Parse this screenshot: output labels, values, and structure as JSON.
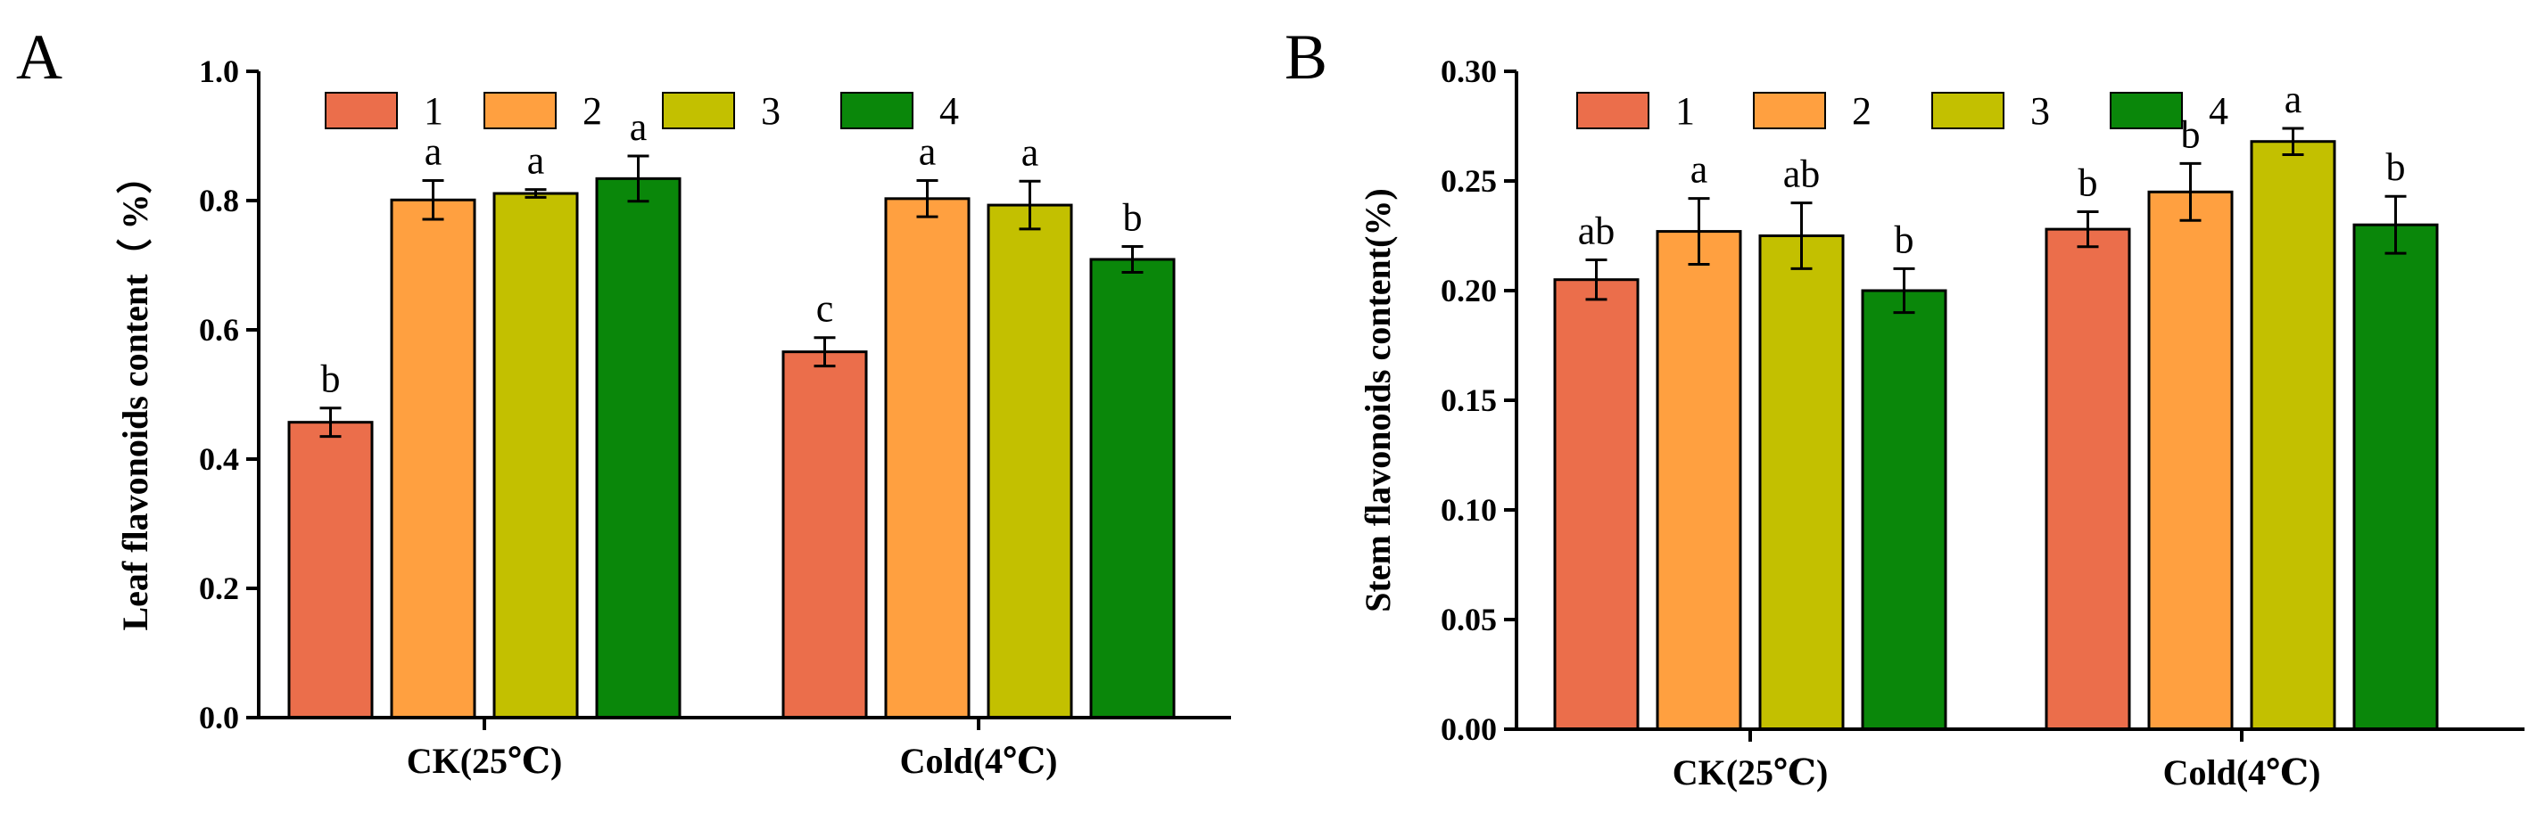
{
  "colors": {
    "series": [
      "#EB6E4B",
      "#FFA040",
      "#C3C000",
      "#0A870A"
    ],
    "axis": "#000000",
    "background": "#FFFFFF"
  },
  "chart_data": [
    {
      "type": "bar",
      "panel": "A",
      "ylabel": "Leaf flavonoids content（ %）",
      "categories": [
        "CK(25℃)",
        "Cold(4℃)"
      ],
      "ylim": [
        0,
        1.0
      ],
      "yticks": [
        "0.0",
        "0.2",
        "0.4",
        "0.6",
        "0.8",
        "1.0"
      ],
      "legend_position": "top",
      "series": [
        {
          "name": "1",
          "values": [
            0.457,
            0.566
          ],
          "errors": [
            0.022,
            0.022
          ],
          "letters": [
            "b",
            "c"
          ]
        },
        {
          "name": "2",
          "values": [
            0.801,
            0.803
          ],
          "errors": [
            0.03,
            0.028
          ],
          "letters": [
            "a",
            "a"
          ]
        },
        {
          "name": "3",
          "values": [
            0.811,
            0.793
          ],
          "errors": [
            0.006,
            0.037
          ],
          "letters": [
            "a",
            "a"
          ]
        },
        {
          "name": "4",
          "values": [
            0.834,
            0.709
          ],
          "errors": [
            0.035,
            0.02
          ],
          "letters": [
            "a",
            "b"
          ]
        }
      ]
    },
    {
      "type": "bar",
      "panel": "B",
      "ylabel": "Stem flavonoids content(%)",
      "categories": [
        "CK(25℃)",
        "Cold(4℃)"
      ],
      "ylim": [
        0,
        0.3
      ],
      "yticks": [
        "0.00",
        "0.05",
        "0.10",
        "0.15",
        "0.20",
        "0.25",
        "0.30"
      ],
      "legend_position": "top",
      "series": [
        {
          "name": "1",
          "values": [
            0.205,
            0.228
          ],
          "errors": [
            0.009,
            0.008
          ],
          "letters": [
            "ab",
            "b"
          ]
        },
        {
          "name": "2",
          "values": [
            0.227,
            0.245
          ],
          "errors": [
            0.015,
            0.013
          ],
          "letters": [
            "a",
            "b"
          ]
        },
        {
          "name": "3",
          "values": [
            0.225,
            0.268
          ],
          "errors": [
            0.015,
            0.006
          ],
          "letters": [
            "ab",
            "a"
          ]
        },
        {
          "name": "4",
          "values": [
            0.2,
            0.23
          ],
          "errors": [
            0.01,
            0.013
          ],
          "letters": [
            "b",
            "b"
          ]
        }
      ]
    }
  ]
}
